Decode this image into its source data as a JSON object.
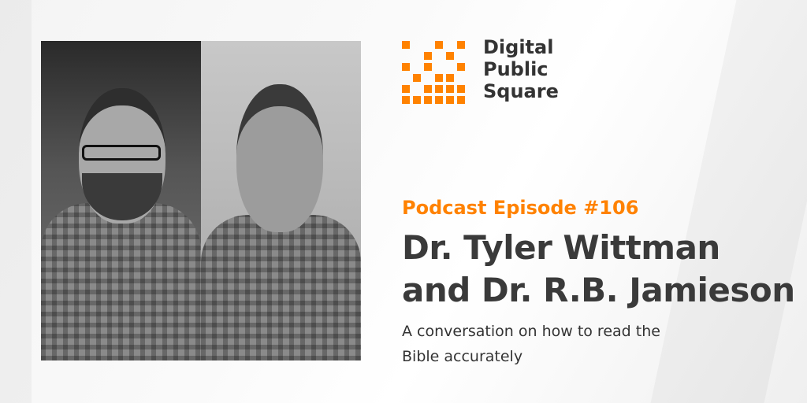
{
  "brand": {
    "name_lines": [
      "Digital",
      "Public",
      "Square"
    ],
    "accent_color": "#ff8200",
    "logo_grid": [
      [
        1,
        0,
        0,
        1,
        0,
        1
      ],
      [
        0,
        0,
        1,
        0,
        1,
        0
      ],
      [
        1,
        0,
        1,
        0,
        0,
        1
      ],
      [
        0,
        1,
        0,
        1,
        1,
        0
      ],
      [
        1,
        0,
        1,
        1,
        1,
        1
      ],
      [
        1,
        1,
        1,
        1,
        1,
        1
      ]
    ]
  },
  "episode": {
    "label": "Podcast Episode #106"
  },
  "title": {
    "lines": [
      "Dr. Tyler Wittman",
      "and Dr. R.B. Jamieson"
    ]
  },
  "subtitle": {
    "lines": [
      "A conversation on how to read the",
      "Bible accurately"
    ]
  },
  "photos": [
    {
      "subject": "man with glasses and beard in plaid shirt"
    },
    {
      "subject": "smiling man in plaid shirt"
    }
  ]
}
